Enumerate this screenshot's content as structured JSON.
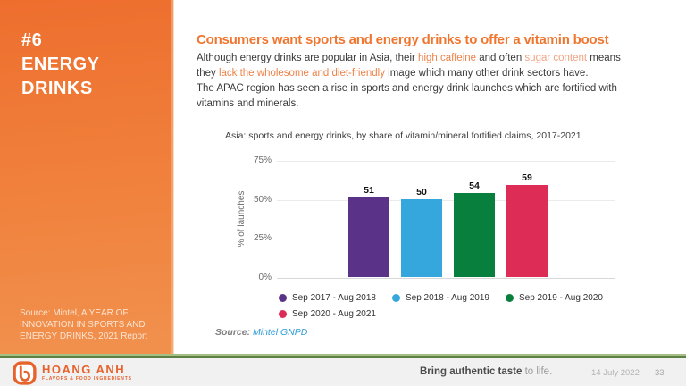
{
  "sidebar": {
    "number": "#6",
    "title_line1": "ENERGY",
    "title_line2": "DRINKS",
    "source_line1": "Source: Mintel, A YEAR OF",
    "source_line2": "INNOVATION IN SPORTS AND",
    "source_line3": "ENERGY DRINKS, 2021 Report"
  },
  "main": {
    "title": "Consumers want sports and energy drinks to offer a vitamin boost",
    "body": {
      "s1": "Although energy drinks are popular in Asia, their ",
      "s2": "high caffeine",
      "s3": " and often ",
      "s4": "sugar content",
      "s5": " means",
      "s6": "they ",
      "s7": "lack the wholesome and diet-friendly",
      "s8": " image which many other drink sectors have.",
      "s9": "The APAC region has seen a rise in sports and energy drink launches which are fortified with",
      "s10": "vitamins and minerals."
    }
  },
  "chart_data": {
    "type": "bar",
    "title": "Asia: sports and energy drinks, by share of vitamin/mineral fortified claims, 2017-2021",
    "xlabel": "",
    "ylabel": "% of launches",
    "ylim": [
      0,
      75
    ],
    "yticks": [
      "0%",
      "25%",
      "50%",
      "75%"
    ],
    "grid": true,
    "legend_position": "bottom",
    "categories": [
      "Sep 2017 - Aug 2018",
      "Sep 2018 - Aug 2019",
      "Sep 2019 - Aug 2020",
      "Sep 2020 - Aug 2021"
    ],
    "values": [
      51,
      50,
      54,
      59
    ],
    "colors": [
      "#5a3287",
      "#36a7dd",
      "#087f3c",
      "#dd2c55"
    ],
    "source_label": "Source:",
    "source_value": "Mintel GNPD"
  },
  "footer": {
    "logo_name": "HOANG ANH",
    "logo_subtitle": "FLAVORS & FOOD INGREDIENTS",
    "tagline_bold": "Bring authentic taste",
    "tagline_light": " to life.",
    "date": "14 July 2022",
    "page": "33"
  },
  "colors": {
    "sidebar_orange": "#ee6e2e",
    "accent_orange": "#f0762f",
    "highlight_orange": "#ee8147",
    "highlight_salmon": "#f2a385",
    "link_blue": "#2e9bd6",
    "footer_green": "#5d8044",
    "logo_orange": "#e7632e"
  }
}
